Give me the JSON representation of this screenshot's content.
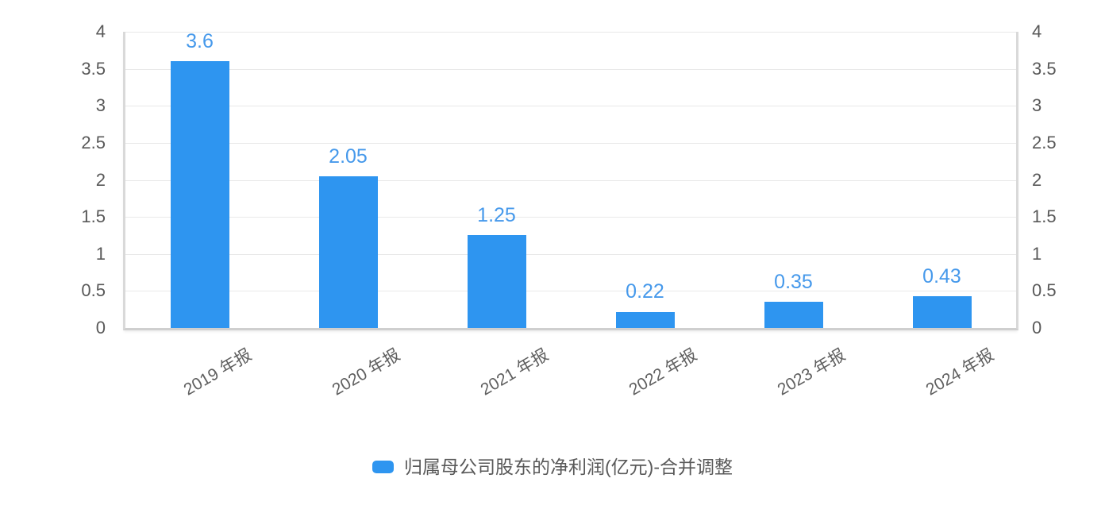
{
  "chart_data": {
    "type": "bar",
    "title": "",
    "categories": [
      "2019 年报",
      "2020 年报",
      "2021 年报",
      "2022 年报",
      "2023 年报",
      "2024 年报"
    ],
    "series": [
      {
        "name": "归属母公司股东的净利润(亿元)-合并调整",
        "values": [
          3.6,
          2.05,
          1.25,
          0.22,
          0.35,
          0.43
        ],
        "data_labels": [
          "3.6",
          "2.05",
          "1.25",
          "0.22",
          "0.35",
          "0.43"
        ],
        "color": "#2E95F0"
      }
    ],
    "ylim": [
      0,
      4
    ],
    "ytick_step": 0.5,
    "yticks": [
      "0",
      "0.5",
      "1",
      "1.5",
      "2",
      "2.5",
      "3",
      "3.5",
      "4"
    ],
    "dual_y_axis": true,
    "grid": true,
    "legend_position": "bottom"
  },
  "colors": {
    "bar": "#2E95F0",
    "data_label": "#4699EB",
    "axis_text": "#595959",
    "grid_line": "#e9e9e9",
    "axis_line": "#d9d9d9",
    "background": "#ffffff"
  },
  "legend": {
    "items": [
      {
        "label": "归属母公司股东的净利润(亿元)-合并调整",
        "color": "#2E95F0"
      }
    ]
  }
}
